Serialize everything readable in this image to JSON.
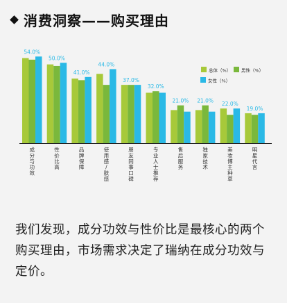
{
  "header": {
    "title": "消费洞察——购买理由"
  },
  "chart_data": {
    "type": "bar",
    "categories": [
      "成分与功效",
      "性价比高",
      "品牌保障",
      "使用感/肤感",
      "朋友同事口碑",
      "专业人士推荐",
      "售后服务",
      "独家技术",
      "美妆博主种草",
      "明星代言"
    ],
    "series": [
      {
        "name": "总体（%）",
        "values": [
          54.0,
          50.0,
          41.0,
          44.0,
          37.0,
          32.0,
          21.0,
          21.0,
          22.0,
          19.0
        ]
      },
      {
        "name": "男性（%）",
        "values": [
          53.0,
          49.0,
          40.0,
          37.0,
          37.0,
          33.0,
          24.0,
          24.0,
          18.0,
          18.0
        ]
      },
      {
        "name": "女性（%）",
        "values": [
          55.0,
          51.0,
          42.0,
          47.0,
          37.0,
          32.0,
          20.0,
          20.0,
          22.0,
          19.0
        ]
      }
    ],
    "data_labels": [
      "54.0%",
      "50.0%",
      "41.0%",
      "44.0%",
      "37.0%",
      "32.0%",
      "21.0%",
      "21.0%",
      "22.0%",
      "19.0%"
    ],
    "ylim": [
      0,
      60
    ],
    "colors": [
      "#a7c93a",
      "#7ab83c",
      "#2ab9e6"
    ],
    "label_color": "#2ab9e6",
    "legend_position": "top-right",
    "grid": false
  },
  "body": {
    "text": "我们发现，成分功效与性价比是最核心的两个购买理由，市场需求决定了瑞纳在成分功效与定价。"
  }
}
